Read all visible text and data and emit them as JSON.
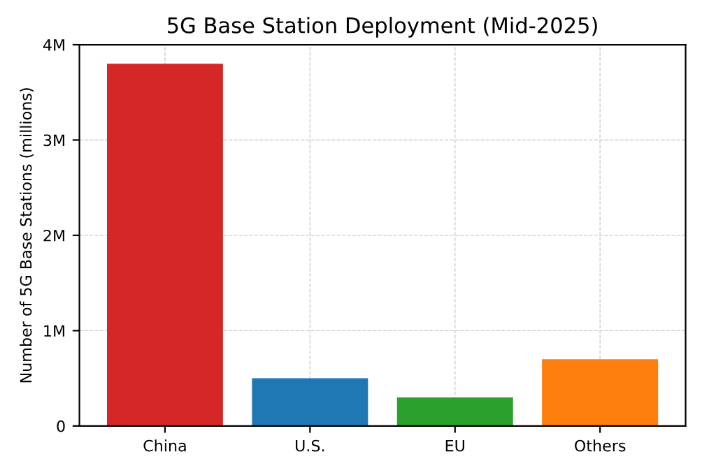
{
  "chart_data": {
    "type": "bar",
    "title": "5G Base Station Deployment (Mid-2025)",
    "ylabel": "Number of 5G Base Stations (millions)",
    "categories": [
      "China",
      "U.S.",
      "EU",
      "Others"
    ],
    "values": [
      3800000,
      500000,
      300000,
      700000
    ],
    "colors": [
      "#d62728",
      "#1f77b4",
      "#2ca02c",
      "#ff7f0e"
    ],
    "ylim": [
      0,
      4000000
    ],
    "yticks": [
      0,
      {
        "value": 1000000,
        "label": "1M"
      },
      {
        "value": 2000000,
        "label": "2M"
      },
      {
        "value": 3000000,
        "label": "3M"
      },
      {
        "value": 4000000,
        "label": "4M"
      }
    ],
    "grid": true
  }
}
